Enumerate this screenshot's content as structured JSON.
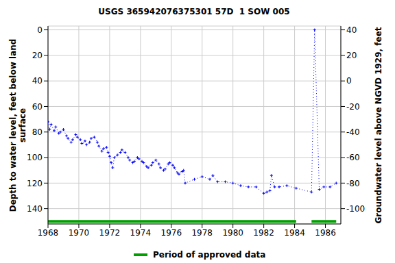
{
  "chart_data": {
    "type": "scatter",
    "title": "USGS 365942076375301 57D  1 SOW 005",
    "x_label": "",
    "y_label": "Depth to water level, feet below land surface",
    "y2_label": "Groundwater level above NGVD 1929, feet",
    "xlim": [
      1968,
      1987
    ],
    "xticks": [
      1968,
      1970,
      1972,
      1974,
      1976,
      1978,
      1980,
      1982,
      1984,
      1986
    ],
    "ylim": [
      -3,
      152
    ],
    "yticks": [
      0,
      20,
      40,
      60,
      80,
      100,
      120,
      140
    ],
    "y2lim": [
      -112,
      43
    ],
    "y2ticks": [
      40,
      20,
      0,
      -20,
      -40,
      -60,
      -80,
      -100
    ],
    "grid": true,
    "series": [
      {
        "name": "Depth to water level",
        "color": "#0000ff",
        "marker": "plus",
        "line_style": "dotted",
        "x": [
          1968.0,
          1968.1,
          1968.2,
          1968.4,
          1968.5,
          1968.7,
          1968.8,
          1969.0,
          1969.2,
          1969.3,
          1969.5,
          1969.6,
          1969.8,
          1969.9,
          1970.1,
          1970.2,
          1970.4,
          1970.5,
          1970.7,
          1970.8,
          1971.0,
          1971.2,
          1971.3,
          1971.5,
          1971.6,
          1971.8,
          1971.9,
          1972.0,
          1972.1,
          1972.2,
          1972.3,
          1972.5,
          1972.7,
          1972.8,
          1973.0,
          1973.2,
          1973.3,
          1973.5,
          1973.6,
          1973.8,
          1973.9,
          1974.1,
          1974.2,
          1974.4,
          1974.5,
          1974.7,
          1974.8,
          1975.0,
          1975.2,
          1975.3,
          1975.5,
          1975.6,
          1975.8,
          1975.9,
          1976.1,
          1976.2,
          1976.4,
          1976.5,
          1976.7,
          1976.8,
          1976.9,
          1977.5,
          1978.0,
          1978.5,
          1978.7,
          1979.0,
          1979.5,
          1980.0,
          1980.5,
          1981.0,
          1981.5,
          1982.0,
          1982.2,
          1982.4,
          1982.5,
          1982.7,
          1983.0,
          1983.5,
          1984.1,
          1985.1,
          1985.3,
          1985.6,
          1985.9,
          1986.3,
          1986.7
        ],
        "values": [
          72,
          78,
          74,
          79,
          76,
          81,
          80,
          78,
          83,
          85,
          88,
          86,
          82,
          84,
          86,
          89,
          87,
          90,
          88,
          85,
          84,
          88,
          91,
          95,
          93,
          92,
          96,
          99,
          104,
          108,
          100,
          98,
          96,
          94,
          96,
          100,
          102,
          104,
          103,
          100,
          101,
          103,
          104,
          107,
          108,
          106,
          104,
          102,
          105,
          108,
          110,
          109,
          105,
          104,
          106,
          108,
          112,
          113,
          111,
          110,
          120,
          117,
          115,
          117,
          114,
          119,
          119,
          120,
          122,
          123,
          123,
          128,
          127,
          126,
          114,
          123,
          123,
          122,
          124,
          127,
          0,
          125,
          123,
          123,
          120
        ]
      }
    ],
    "approved_periods": {
      "name": "Period of approved data",
      "color": "#00a000",
      "ranges": [
        [
          1968,
          1984.1
        ],
        [
          1985.1,
          1986.7
        ]
      ]
    }
  }
}
